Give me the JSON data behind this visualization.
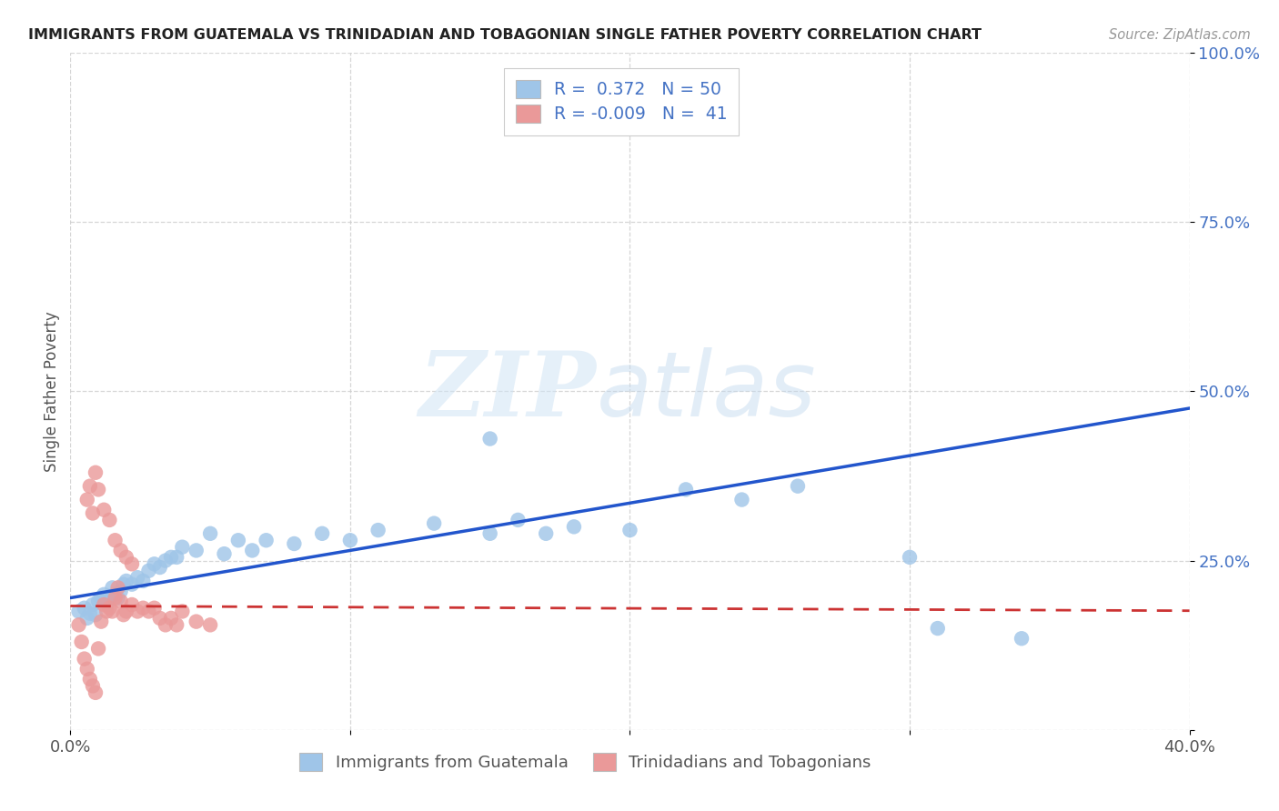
{
  "title": "IMMIGRANTS FROM GUATEMALA VS TRINIDADIAN AND TOBAGONIAN SINGLE FATHER POVERTY CORRELATION CHART",
  "source": "Source: ZipAtlas.com",
  "ylabel": "Single Father Poverty",
  "legend_label1": "Immigrants from Guatemala",
  "legend_label2": "Trinidadians and Tobagonians",
  "R1": 0.372,
  "N1": 50,
  "R2": -0.009,
  "N2": 41,
  "blue_color": "#9fc5e8",
  "pink_color": "#ea9999",
  "line_blue": "#2255cc",
  "line_pink": "#cc3333",
  "watermark_zip": "ZIP",
  "watermark_atlas": "atlas",
  "xlim": [
    0.0,
    0.4
  ],
  "ylim": [
    0.0,
    1.0
  ],
  "xticks": [
    0.0,
    0.1,
    0.2,
    0.3,
    0.4
  ],
  "xticklabels": [
    "0.0%",
    "",
    "",
    "",
    "40.0%"
  ],
  "yticks": [
    0.0,
    0.25,
    0.5,
    0.75,
    1.0
  ],
  "yticklabels": [
    "",
    "25.0%",
    "50.0%",
    "75.0%",
    "100.0%"
  ],
  "blue_line_x": [
    0.0,
    0.4
  ],
  "blue_line_y": [
    0.195,
    0.475
  ],
  "pink_line_x": [
    0.0,
    0.4
  ],
  "pink_line_y": [
    0.183,
    0.176
  ],
  "blue_scatter_x": [
    0.003,
    0.005,
    0.006,
    0.007,
    0.008,
    0.009,
    0.01,
    0.011,
    0.012,
    0.013,
    0.014,
    0.015,
    0.016,
    0.017,
    0.018,
    0.019,
    0.02,
    0.022,
    0.024,
    0.026,
    0.028,
    0.03,
    0.032,
    0.034,
    0.036,
    0.038,
    0.04,
    0.045,
    0.05,
    0.055,
    0.06,
    0.065,
    0.07,
    0.08,
    0.09,
    0.1,
    0.11,
    0.13,
    0.15,
    0.16,
    0.17,
    0.18,
    0.2,
    0.22,
    0.24,
    0.26,
    0.15,
    0.3,
    0.31,
    0.34
  ],
  "blue_scatter_y": [
    0.175,
    0.18,
    0.165,
    0.172,
    0.185,
    0.17,
    0.19,
    0.195,
    0.2,
    0.185,
    0.195,
    0.21,
    0.2,
    0.195,
    0.205,
    0.215,
    0.22,
    0.215,
    0.225,
    0.22,
    0.235,
    0.245,
    0.24,
    0.25,
    0.255,
    0.255,
    0.27,
    0.265,
    0.29,
    0.26,
    0.28,
    0.265,
    0.28,
    0.275,
    0.29,
    0.28,
    0.295,
    0.305,
    0.29,
    0.31,
    0.29,
    0.3,
    0.295,
    0.355,
    0.34,
    0.36,
    0.43,
    0.255,
    0.15,
    0.135
  ],
  "pink_scatter_x": [
    0.003,
    0.004,
    0.005,
    0.006,
    0.007,
    0.008,
    0.009,
    0.01,
    0.011,
    0.012,
    0.013,
    0.014,
    0.015,
    0.016,
    0.017,
    0.018,
    0.019,
    0.02,
    0.022,
    0.024,
    0.026,
    0.028,
    0.03,
    0.032,
    0.034,
    0.036,
    0.038,
    0.04,
    0.045,
    0.05,
    0.006,
    0.007,
    0.008,
    0.009,
    0.01,
    0.012,
    0.014,
    0.016,
    0.018,
    0.02,
    0.022
  ],
  "pink_scatter_y": [
    0.155,
    0.13,
    0.105,
    0.09,
    0.075,
    0.065,
    0.055,
    0.12,
    0.16,
    0.185,
    0.175,
    0.18,
    0.175,
    0.195,
    0.21,
    0.19,
    0.17,
    0.175,
    0.185,
    0.175,
    0.18,
    0.175,
    0.18,
    0.165,
    0.155,
    0.165,
    0.155,
    0.175,
    0.16,
    0.155,
    0.34,
    0.36,
    0.32,
    0.38,
    0.355,
    0.325,
    0.31,
    0.28,
    0.265,
    0.255,
    0.245
  ]
}
